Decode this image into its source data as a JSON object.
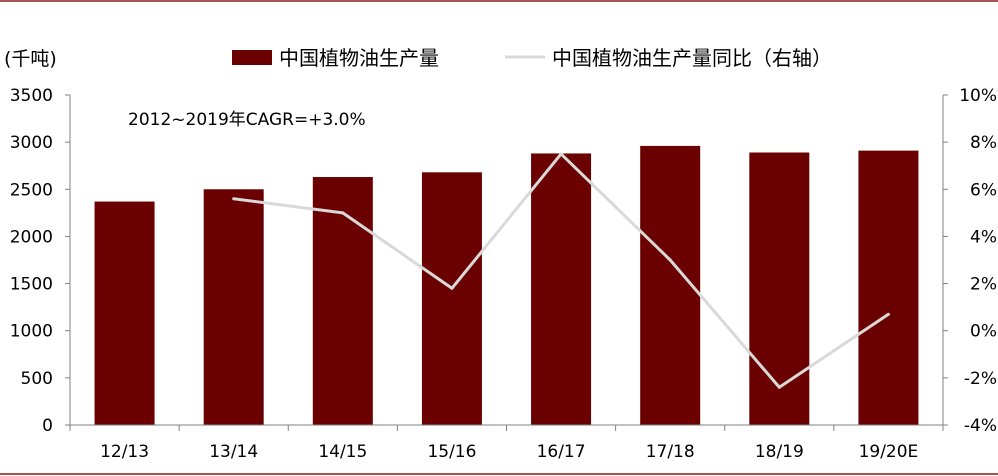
{
  "chart_data": {
    "type": "bar+line",
    "categories": [
      "12/13",
      "13/14",
      "14/15",
      "15/16",
      "16/17",
      "17/18",
      "18/19",
      "19/20E"
    ],
    "series": [
      {
        "name": "中国植物油生产量",
        "type": "bar",
        "axis": "left",
        "values": [
          2370,
          2500,
          2630,
          2680,
          2880,
          2960,
          2890,
          2910
        ]
      },
      {
        "name": "中国植物油生产量同比（右轴）",
        "type": "line",
        "axis": "right",
        "values": [
          null,
          5.6,
          5.0,
          1.8,
          7.5,
          3.0,
          -2.4,
          0.7
        ]
      }
    ],
    "y_left": {
      "unit_label": "(千吨)",
      "ylim": [
        0,
        3500
      ],
      "ticks": [
        0,
        500,
        1000,
        1500,
        2000,
        2500,
        3000,
        3500
      ],
      "tick_labels": [
        "0",
        "500",
        "1000",
        "1500",
        "2000",
        "2500",
        "3000",
        "3500"
      ]
    },
    "y_right": {
      "ylim": [
        -4,
        10
      ],
      "ticks": [
        -4,
        -2,
        0,
        2,
        4,
        6,
        8,
        10
      ],
      "tick_labels": [
        "-4%",
        "-2%",
        "0%",
        "2%",
        "4%",
        "6%",
        "8%",
        "10%"
      ]
    },
    "annotation": "2012~2019年CAGR=+3.0%",
    "legend_position": "top",
    "grid": false,
    "colors": {
      "bar": "#6b0000",
      "line": "#d9d9d9",
      "axis": "#808080",
      "frame_line": "#8b1a1a",
      "text": "#000000"
    }
  }
}
